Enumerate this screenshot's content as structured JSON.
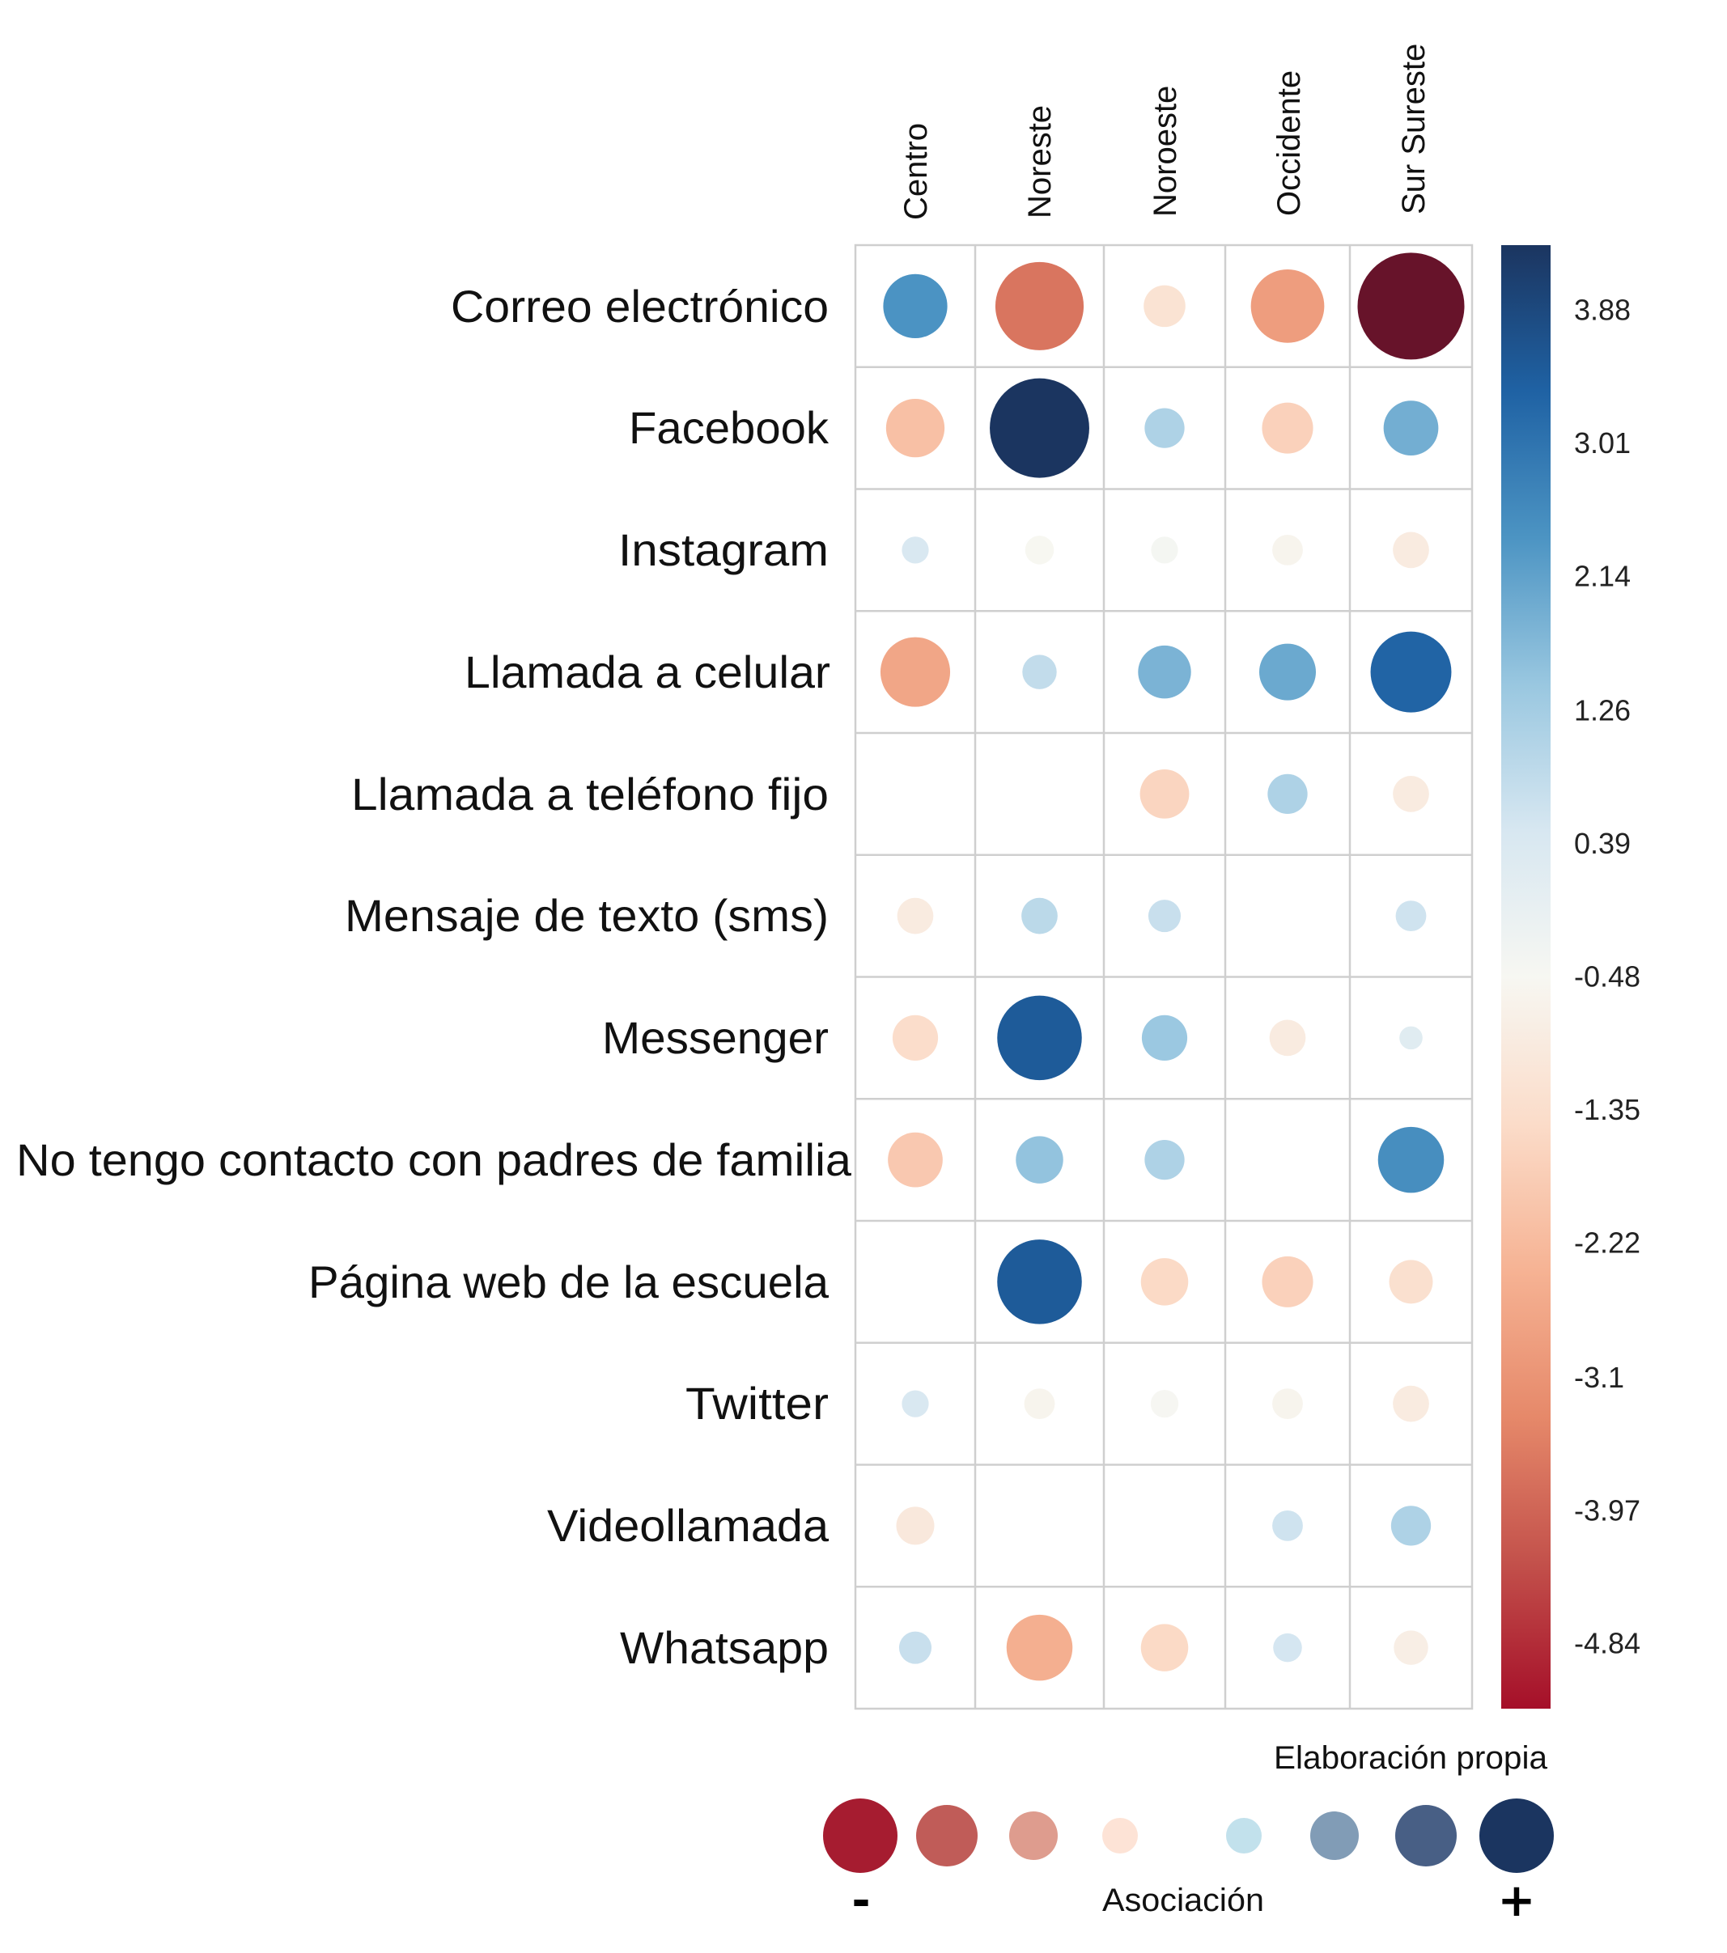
{
  "chart_data": {
    "type": "heatmap",
    "subtype": "bubble-correlation-matrix",
    "title": "",
    "columns": [
      "Centro",
      "Noreste",
      "Noroeste",
      "Occidente",
      "Sur Sureste"
    ],
    "rows": [
      "Correo electrónico",
      "Facebook",
      "Instagram",
      "Llamada a celular",
      "Llamada a teléfono fijo",
      "Mensaje de texto (sms)",
      "Messenger",
      "No tengo contacto con padres de familia",
      "Página web de la escuela",
      "Twitter",
      "Videollamada",
      "Whatsapp"
    ],
    "values": [
      [
        2.4,
        -3.7,
        -1.2,
        -2.9,
        -5.6
      ],
      [
        -2.1,
        4.3,
        1.1,
        -1.7,
        1.9
      ],
      [
        0.4,
        -0.5,
        -0.4,
        -0.6,
        -0.9
      ],
      [
        -2.7,
        0.8,
        1.8,
        2.0,
        3.3
      ],
      [
        null,
        null,
        -1.6,
        1.1,
        -0.9
      ],
      [
        -0.9,
        0.9,
        0.7,
        null,
        0.6
      ],
      [
        -1.4,
        3.5,
        1.4,
        -0.9,
        0.2
      ],
      [
        -1.9,
        1.5,
        1.1,
        null,
        2.5
      ],
      [
        null,
        3.5,
        -1.5,
        -1.7,
        -1.3
      ],
      [
        0.4,
        -0.6,
        -0.45,
        -0.6,
        -0.9
      ],
      [
        -1.0,
        null,
        null,
        0.6,
        1.1
      ],
      [
        0.7,
        -2.5,
        -1.5,
        0.5,
        -0.8
      ]
    ],
    "colorbar": {
      "ticks": [
        "3.88",
        "3.01",
        "2.14",
        "1.26",
        "0.39",
        "-0.48",
        "-1.35",
        "-2.22",
        "-3.1",
        "-3.97",
        "-4.84"
      ],
      "tick_values": [
        3.88,
        3.01,
        2.14,
        1.26,
        0.39,
        -0.48,
        -1.35,
        -2.22,
        -3.1,
        -3.97,
        -4.84
      ],
      "range": [
        -5.27,
        4.3
      ],
      "palette": "RdBu",
      "stops": [
        "#a50f29",
        "#c3514b",
        "#e6896a",
        "#f6b394",
        "#fbdcc9",
        "#f7f7f2",
        "#d7e7f1",
        "#99c7e0",
        "#4c94c3",
        "#1f62a4",
        "#1b3560"
      ],
      "beyond_min_color": "#67132a"
    },
    "legend": {
      "title": "Asociación",
      "negative_sign": "-",
      "positive_sign": "+",
      "placement": "bottom",
      "swatches": [
        {
          "color": "#a61c30",
          "level": -4
        },
        {
          "color": "#c05c58",
          "level": -3
        },
        {
          "color": "#de9c8e",
          "level": -2
        },
        {
          "color": "#fde3d6",
          "level": -1
        },
        {
          "color": "#c2e1ec",
          "level": 1
        },
        {
          "color": "#819cb6",
          "level": 2
        },
        {
          "color": "#485f85",
          "level": 3
        },
        {
          "color": "#1b3560",
          "level": 4
        }
      ]
    },
    "credit": "Elaboración propia",
    "grid": true
  }
}
